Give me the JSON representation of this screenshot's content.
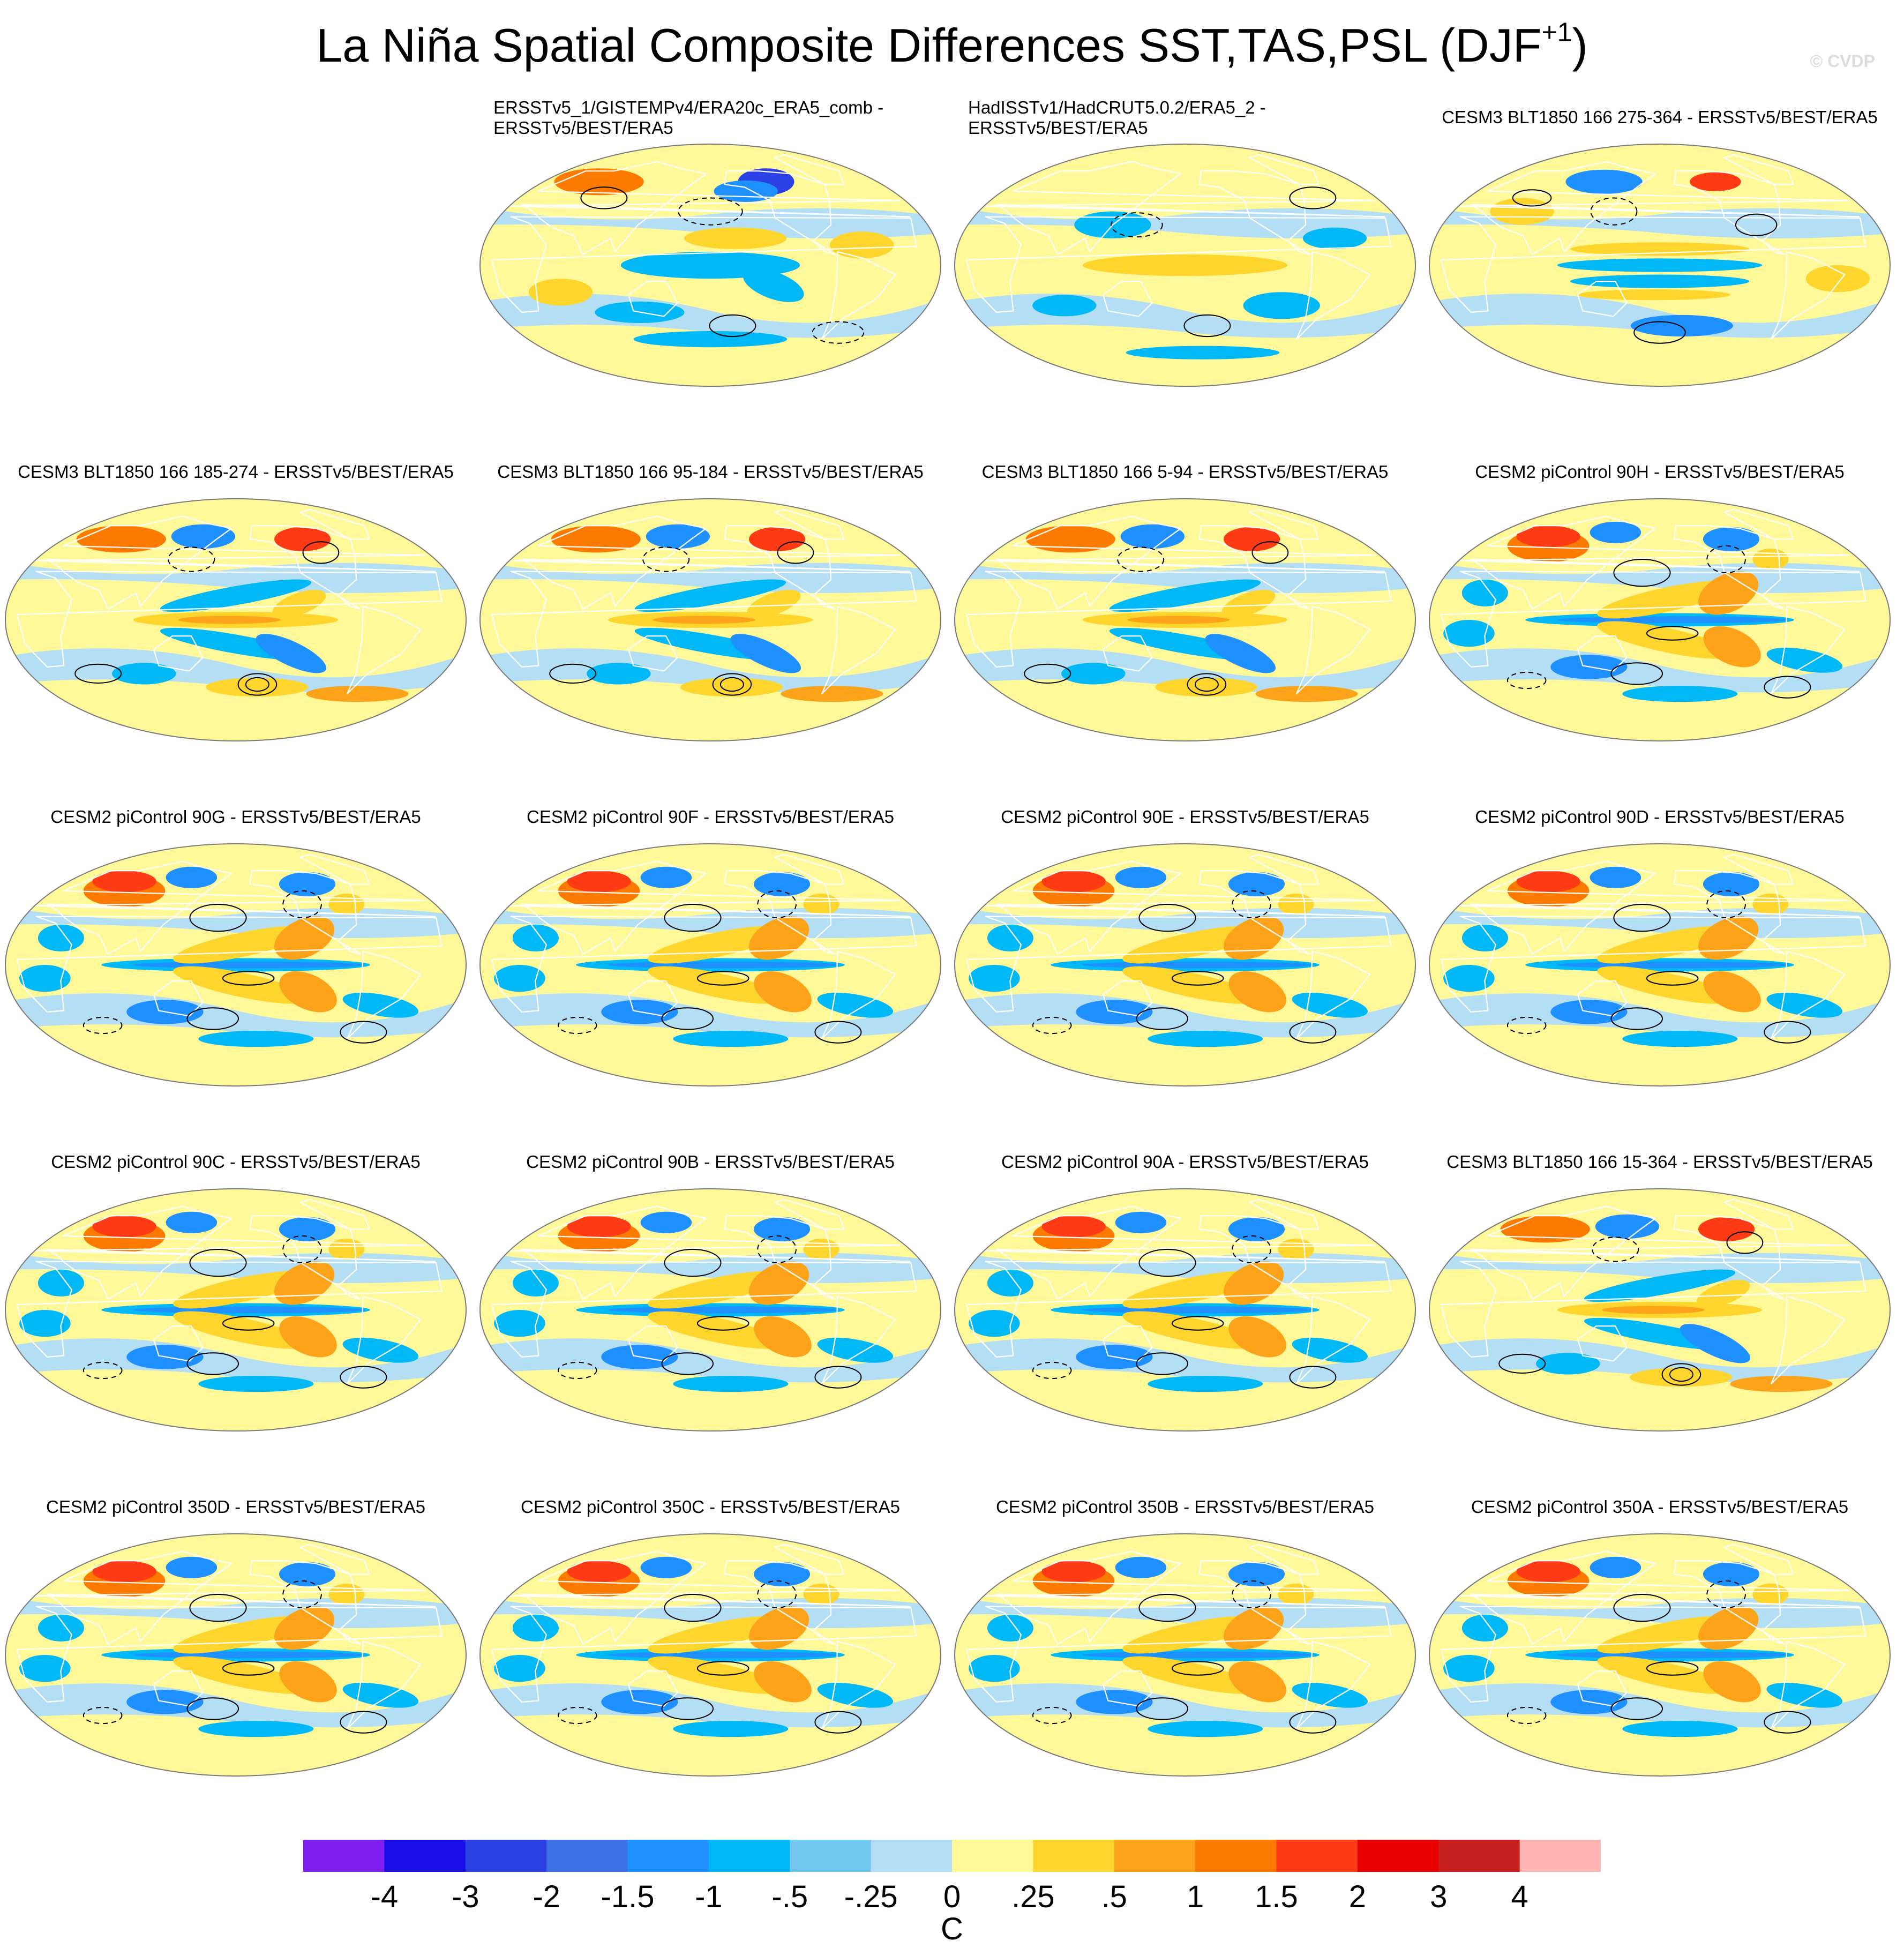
{
  "title_main": "La Niña Spatial Composite Differences SST,TAS,PSL (DJF",
  "title_sup": "+1",
  "title_end": ")",
  "copyright": "© CVDP",
  "colors": {
    "colorbar": [
      "#7f1ff0",
      "#1a0fe8",
      "#2b41e6",
      "#3c72e6",
      "#1e90ff",
      "#00b8f6",
      "#72c8ef",
      "#b3def4",
      "#fff899",
      "#fdd52d",
      "#fca31a",
      "#fc7a00",
      "#ff3b16",
      "#e80000",
      "#c81e1e",
      "#ffb4b4"
    ],
    "land_outline": "#ffffff",
    "contour": "#000000",
    "frame": "#7a7a7a"
  },
  "chart_data": {
    "type": "map-panels",
    "projection": "Robinson-like global",
    "units": "C",
    "colorbar_levels": [
      "-4",
      "-3",
      "-2",
      "-1.5",
      "-1",
      "-.5",
      "-.25",
      "0",
      ".25",
      ".5",
      "1",
      "1.5",
      "2",
      "3",
      "4"
    ],
    "colorbar_unit": "C",
    "panels": [
      {
        "id": "p1",
        "lines": [
          "ERSSTv5_1/GISTEMPv4/ERA20c_ERA5_comb -",
          "ERSSTv5/BEST/ERA5"
        ],
        "pattern": "obs1"
      },
      {
        "id": "p2",
        "lines": [
          "HadISSTv1/HadCRUT5.0.2/ERA5_2 -",
          "ERSSTv5/BEST/ERA5"
        ],
        "pattern": "obs2"
      },
      {
        "id": "p3",
        "lines": [
          "CESM3 BLT1850 166 275-364 - ERSSTv5/BEST/ERA5"
        ],
        "pattern": "blt_a"
      },
      {
        "id": "p4",
        "lines": [
          "CESM3 BLT1850 166 185-274 - ERSSTv5/BEST/ERA5"
        ],
        "pattern": "blt_b"
      },
      {
        "id": "p5",
        "lines": [
          "CESM3 BLT1850 166 95-184 - ERSSTv5/BEST/ERA5"
        ],
        "pattern": "blt_b"
      },
      {
        "id": "p6",
        "lines": [
          "CESM3 BLT1850 166 5-94 - ERSSTv5/BEST/ERA5"
        ],
        "pattern": "blt_b"
      },
      {
        "id": "p7",
        "lines": [
          "CESM2 piControl 90H - ERSSTv5/BEST/ERA5"
        ],
        "pattern": "cesm2"
      },
      {
        "id": "p8",
        "lines": [
          "CESM2 piControl 90G - ERSSTv5/BEST/ERA5"
        ],
        "pattern": "cesm2"
      },
      {
        "id": "p9",
        "lines": [
          "CESM2 piControl 90F - ERSSTv5/BEST/ERA5"
        ],
        "pattern": "cesm2"
      },
      {
        "id": "p10",
        "lines": [
          "CESM2 piControl 90E - ERSSTv5/BEST/ERA5"
        ],
        "pattern": "cesm2"
      },
      {
        "id": "p11",
        "lines": [
          "CESM2 piControl 90D - ERSSTv5/BEST/ERA5"
        ],
        "pattern": "cesm2"
      },
      {
        "id": "p12",
        "lines": [
          "CESM2 piControl 90C - ERSSTv5/BEST/ERA5"
        ],
        "pattern": "cesm2"
      },
      {
        "id": "p13",
        "lines": [
          "CESM2 piControl 90B - ERSSTv5/BEST/ERA5"
        ],
        "pattern": "cesm2"
      },
      {
        "id": "p14",
        "lines": [
          "CESM2 piControl 90A - ERSSTv5/BEST/ERA5"
        ],
        "pattern": "cesm2"
      },
      {
        "id": "p15",
        "lines": [
          "CESM3 BLT1850 166 15-364 - ERSSTv5/BEST/ERA5"
        ],
        "pattern": "blt_b"
      },
      {
        "id": "p16",
        "lines": [
          "CESM2 piControl 350D - ERSSTv5/BEST/ERA5"
        ],
        "pattern": "cesm2"
      },
      {
        "id": "p17",
        "lines": [
          "CESM2 piControl 350C - ERSSTv5/BEST/ERA5"
        ],
        "pattern": "cesm2"
      },
      {
        "id": "p18",
        "lines": [
          "CESM2 piControl 350B - ERSSTv5/BEST/ERA5"
        ],
        "pattern": "cesm2"
      },
      {
        "id": "p19",
        "lines": [
          "CESM2 piControl 350A - ERSSTv5/BEST/ERA5"
        ],
        "pattern": "cesm2"
      }
    ]
  }
}
